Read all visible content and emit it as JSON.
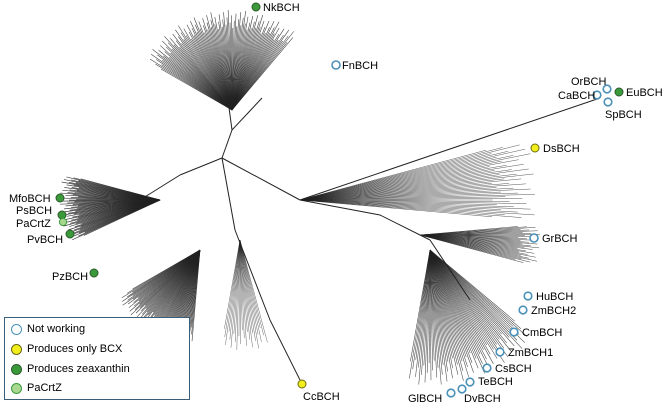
{
  "colors": {
    "not_working": "#4a90b8",
    "only_bcx": "#f2ee1c",
    "zeaxanthin": "#3a9a3a",
    "pacrtz": "#a8d890",
    "outline_dark": "#2d5a2d",
    "outline_yellow": "#6b6b10",
    "branch": "#222222"
  },
  "labels": {
    "nkbch": "NkBCH",
    "fnbch": "FnBCH",
    "orbch": "OrBCH",
    "cabch": "CaBCH",
    "eubch": "EuBCH",
    "spbch": "SpBCH",
    "dsbch": "DsBCH",
    "mfobch": "MfoBCH",
    "psbch": "PsBCH",
    "pacrtz": "PaCrtZ",
    "pvbch": "PvBCH",
    "pzbch": "PzBCH",
    "grbch": "GrBCH",
    "hubch": "HuBCH",
    "zmbch2": "ZmBCH2",
    "cmbch": "CmBCH",
    "zmbch1": "ZmBCH1",
    "csbch": "CsBCH",
    "tebch": "TeBCH",
    "glbch": "GlBCH",
    "dvbch": "DvBCH",
    "ccbch": "CcBCH"
  },
  "legend": {
    "not_working": "Not working",
    "only_bcx": "Produces only BCX",
    "zeaxanthin": "Produces zeaxanthin",
    "pacrtz": "PaCrtZ"
  }
}
